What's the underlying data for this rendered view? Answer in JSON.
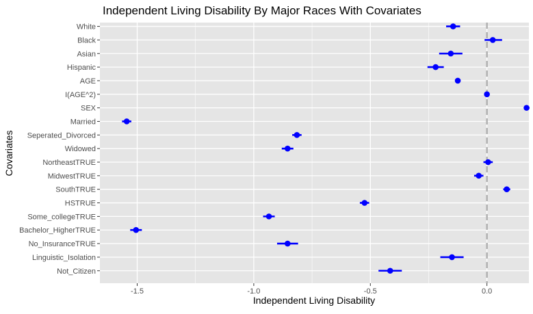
{
  "chart_data": {
    "type": "scatter",
    "title": "Independent Living Disability By Major Races With Covariates",
    "xlabel": "Independent Living Disability",
    "ylabel": "Covariates",
    "xlim": [
      -1.66,
      0.18
    ],
    "x_ticks": [
      -1.5,
      -1.0,
      -0.5,
      0.0
    ],
    "x_tick_labels": [
      "-1.5",
      "-1.0",
      "-0.5",
      "0.0"
    ],
    "reference_line": 0.0,
    "grid": true,
    "colors": {
      "panel": "#e5e5e5",
      "grid": "#ffffff",
      "point": "#0000ff",
      "reference": "#b3b3b3"
    },
    "categories": [
      "White",
      "Black",
      "Asian",
      "Hispanic",
      "AGE",
      "I(AGE^2)",
      "SEX",
      "Married",
      "Seperated_Divorced",
      "Widowed",
      "NortheastTRUE",
      "MidwestTRUE",
      "SouthTRUE",
      "HSTRUE",
      "Some_collegeTRUE",
      "Bachelor_HigherTRUE",
      "No_InsuranceTRUE",
      "Linguistic_Isolation",
      "Not_Citizen"
    ],
    "estimates": [
      -0.145,
      0.025,
      -0.155,
      -0.22,
      -0.125,
      0.0,
      0.17,
      -1.545,
      -0.815,
      -0.855,
      0.005,
      -0.035,
      0.085,
      -0.525,
      -0.935,
      -1.505,
      -0.855,
      -0.15,
      -0.415
    ],
    "lower": [
      -0.175,
      -0.01,
      -0.205,
      -0.255,
      -0.13,
      -0.004,
      0.158,
      -1.565,
      -0.835,
      -0.88,
      -0.015,
      -0.055,
      0.07,
      -0.545,
      -0.96,
      -1.53,
      -0.9,
      -0.2,
      -0.465
    ],
    "upper": [
      -0.115,
      0.065,
      -0.105,
      -0.185,
      -0.12,
      0.004,
      0.182,
      -1.525,
      -0.795,
      -0.83,
      0.025,
      -0.015,
      0.1,
      -0.505,
      -0.91,
      -1.48,
      -0.81,
      -0.1,
      -0.365
    ]
  }
}
